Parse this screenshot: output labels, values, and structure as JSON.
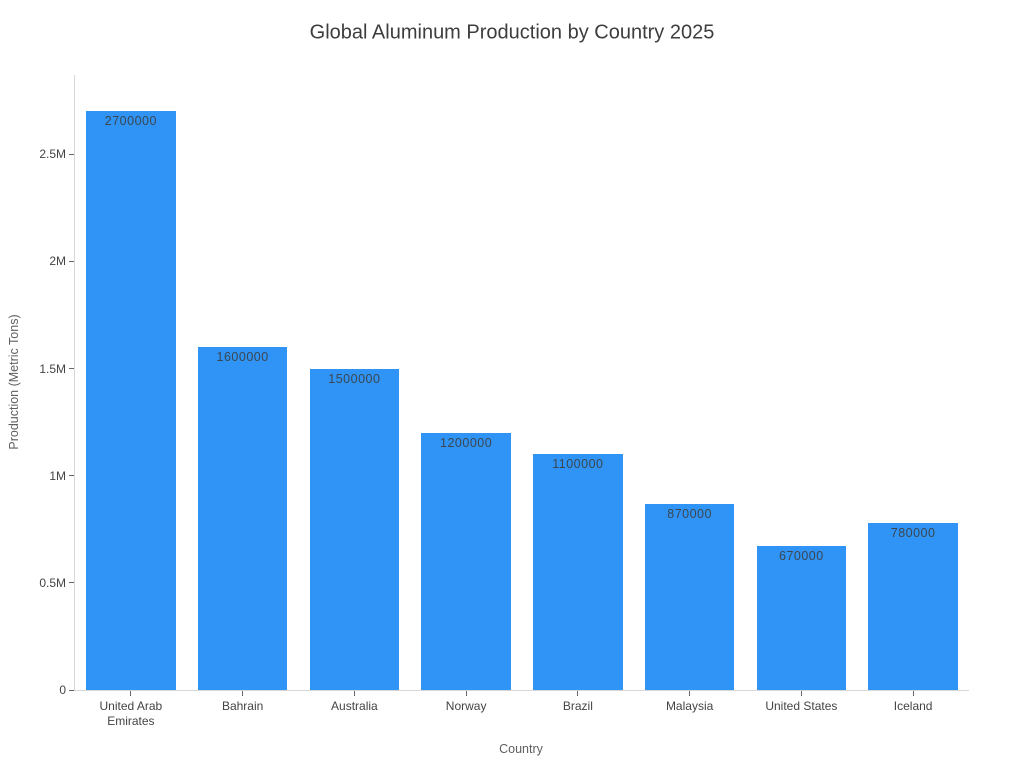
{
  "chart_data": {
    "type": "bar",
    "title": "Global Aluminum Production by Country 2025",
    "xlabel": "Country",
    "ylabel": "Production (Metric Tons)",
    "categories": [
      "United Arab Emirates",
      "Bahrain",
      "Australia",
      "Norway",
      "Brazil",
      "Malaysia",
      "United States",
      "Iceland"
    ],
    "values": [
      2700000,
      1600000,
      1500000,
      1200000,
      1100000,
      870000,
      670000,
      780000
    ],
    "bar_value_labels": [
      "2700000",
      "1600000",
      "1500000",
      "1200000",
      "1100000",
      "870000",
      "670000",
      "780000"
    ],
    "ylim": [
      0,
      2870000
    ],
    "yticks": [
      {
        "value": 0,
        "label": "0"
      },
      {
        "value": 500000,
        "label": "0.5M"
      },
      {
        "value": 1000000,
        "label": "1M"
      },
      {
        "value": 1500000,
        "label": "1.5M"
      },
      {
        "value": 2000000,
        "label": "2M"
      },
      {
        "value": 2500000,
        "label": "2.5M"
      }
    ],
    "grid": false,
    "legend": "none",
    "colors": {
      "bar": "#2f94f5",
      "title_text": "#3d3d3d",
      "tick_text": "#444444",
      "axis_title_text": "#5f5f5f",
      "bar_label_text": "#3c4650",
      "spine": "#d7d7d7",
      "tick_mark": "#666666",
      "background": "#ffffff"
    }
  }
}
